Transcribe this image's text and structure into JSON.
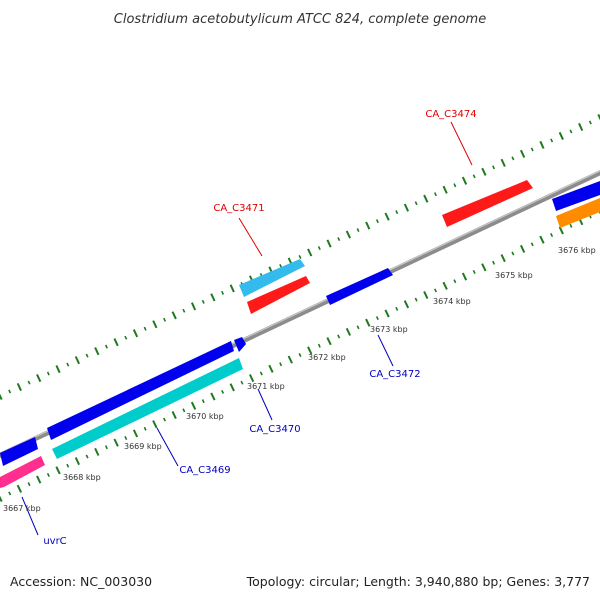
{
  "title": "Clostridium acetobutylicum ATCC 824, complete genome",
  "footer": {
    "accession": "Accession: NC_003030",
    "summary": "Topology: circular; Length: 3,940,880 bp; Genes: 3,777"
  },
  "colors": {
    "backbone": "#8c8c8c",
    "tick": "#1f7a1f",
    "label_forward": "#e00000",
    "label_reverse": "#0000c0"
  },
  "ticks": [
    {
      "label": "3667 kbp"
    },
    {
      "label": "3668 kbp"
    },
    {
      "label": "3669 kbp"
    },
    {
      "label": "3670 kbp"
    },
    {
      "label": "3671 kbp"
    },
    {
      "label": "3672 kbp"
    },
    {
      "label": "3673 kbp"
    },
    {
      "label": "3674 kbp"
    },
    {
      "label": "3675 kbp"
    },
    {
      "label": "3676 kbp"
    }
  ],
  "genes": [
    {
      "label": "CA_C3471",
      "strand": "forward",
      "color": "#e00000"
    },
    {
      "label": "CA_C3474",
      "strand": "forward",
      "color": "#e00000"
    },
    {
      "label": "uvrC",
      "strand": "reverse",
      "color": "#0000c0"
    },
    {
      "label": "CA_C3469",
      "strand": "reverse",
      "color": "#0000c0"
    },
    {
      "label": "CA_C3470",
      "strand": "reverse",
      "color": "#0000c0"
    },
    {
      "label": "CA_C3472",
      "strand": "reverse",
      "color": "#0000c0"
    }
  ],
  "feature_colors": [
    "#0000ee",
    "#ff2e8f",
    "#00cccc",
    "#33bbee",
    "#ff1a1a",
    "#ff8c00"
  ]
}
